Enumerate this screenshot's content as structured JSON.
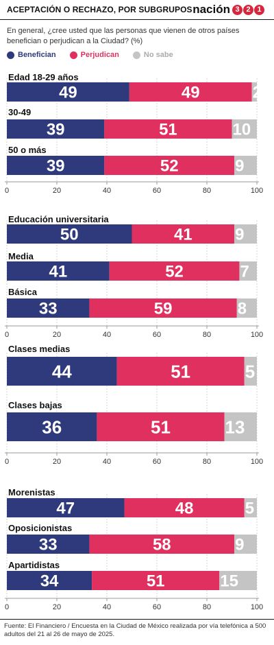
{
  "header": {
    "title": "Aceptación o rechazo, por subgrupos",
    "logo_text": "nación",
    "logo_digits": [
      "3",
      "2",
      "1"
    ]
  },
  "question": "En general, ¿cree usted que las personas que vienen de otros países benefician o perjudican a la Ciudad?  (%)",
  "legend": [
    {
      "label": "Benefician",
      "color": "#2e3a7c"
    },
    {
      "label": "Perjudican",
      "color": "#e0305f"
    },
    {
      "label": "No sabe",
      "color": "#c4c4c4"
    }
  ],
  "chart_data": {
    "type": "bar",
    "stacked": true,
    "orientation": "horizontal",
    "xlim": [
      0,
      100
    ],
    "xticks": [
      0,
      20,
      40,
      60,
      80,
      100
    ],
    "series_names": [
      "Benefician",
      "Perjudican",
      "No sabe"
    ],
    "colors": [
      "#2e3a7c",
      "#e0305f",
      "#c4c4c4"
    ],
    "panels": [
      {
        "categories": [
          {
            "label": "Edad 18-29 años",
            "values": [
              49,
              49,
              2
            ]
          },
          {
            "label": "30-49",
            "values": [
              39,
              51,
              10
            ]
          },
          {
            "label": "50 o más",
            "values": [
              39,
              52,
              9
            ]
          }
        ]
      },
      {
        "categories": [
          {
            "label": "Educación universitaria",
            "values": [
              50,
              41,
              9
            ]
          },
          {
            "label": "Media",
            "values": [
              41,
              52,
              7
            ]
          },
          {
            "label": "Básica",
            "values": [
              33,
              59,
              8
            ]
          }
        ]
      },
      {
        "categories": [
          {
            "label": "Clases medias",
            "values": [
              44,
              51,
              5
            ]
          },
          {
            "label": "Clases bajas",
            "values": [
              36,
              51,
              13
            ]
          }
        ]
      },
      {
        "categories": [
          {
            "label": "Morenistas",
            "values": [
              47,
              48,
              5
            ]
          },
          {
            "label": "Oposicionistas",
            "values": [
              33,
              58,
              9
            ]
          },
          {
            "label": "Apartidistas",
            "values": [
              34,
              51,
              15
            ]
          }
        ]
      }
    ]
  },
  "footer": "Fuente: El Financiero / Encuesta en la Ciudad de México realizada por vía telefónica a 500 adultos del 21 al 26 de mayo de 2025."
}
